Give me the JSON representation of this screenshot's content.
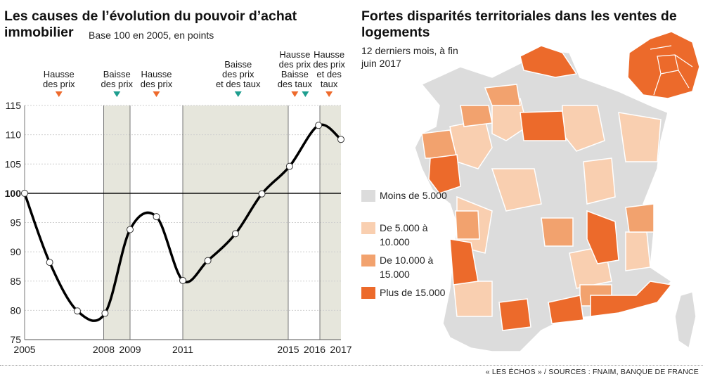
{
  "chart_data": {
    "type": "line",
    "title": "Les causes de l’évolution du pouvoir d’achat immobilier",
    "subtitle": "Base 100 en 2005, en points",
    "x_tick_labels": [
      "2005",
      "2008",
      "2009",
      "2011",
      "2015",
      "2016",
      "2017"
    ],
    "y_ticks": [
      75,
      80,
      85,
      90,
      95,
      100,
      105,
      110,
      115
    ],
    "y_tick_labels": [
      "75",
      "80",
      "85",
      "90",
      "95",
      "100",
      "105",
      "110",
      "115"
    ],
    "ylim": [
      75,
      115
    ],
    "xlim": [
      2005,
      2017
    ],
    "reference_line": 100,
    "points": [
      {
        "x": 2005.0,
        "y": 100
      },
      {
        "x": 2005.95,
        "y": 88.2
      },
      {
        "x": 2007.0,
        "y": 79.9
      },
      {
        "x": 2008.05,
        "y": 79.5
      },
      {
        "x": 2009.0,
        "y": 93.8
      },
      {
        "x": 2010.0,
        "y": 96.0
      },
      {
        "x": 2011.0,
        "y": 85.1
      },
      {
        "x": 2011.95,
        "y": 88.5
      },
      {
        "x": 2013.0,
        "y": 93.1
      },
      {
        "x": 2014.0,
        "y": 99.9
      },
      {
        "x": 2015.05,
        "y": 104.6
      },
      {
        "x": 2016.15,
        "y": 111.6
      },
      {
        "x": 2017.0,
        "y": 109.2
      }
    ],
    "shaded_periods": [
      [
        2008,
        2009
      ],
      [
        2011,
        2015
      ],
      [
        2016.2,
        2017.2
      ]
    ],
    "annotations": [
      {
        "lines": [
          "Hausse",
          "des prix"
        ],
        "x": 2006.3,
        "marker": "down",
        "color": "#ee6a2c"
      },
      {
        "lines": [
          "Baisse",
          "des prix"
        ],
        "x": 2008.5,
        "marker": "down",
        "color": "#1e9e8f"
      },
      {
        "lines": [
          "Hausse",
          "des prix"
        ],
        "x": 2010.0,
        "marker": "down",
        "color": "#ee6a2c"
      },
      {
        "lines": [
          "Baisse",
          "des prix",
          "et des taux"
        ],
        "x": 2013.1,
        "marker": "down",
        "color": "#1e9e8f"
      },
      {
        "lines": [
          "Hausse",
          "des prix",
          "Baisse",
          "des taux"
        ],
        "x": 2015.25,
        "marker": "down",
        "color": "#ee6a2c"
      },
      {
        "lines": [],
        "x": 2015.65,
        "marker": "down",
        "color": "#1e9e8f"
      },
      {
        "lines": [
          "Hausse",
          "des prix",
          "et des",
          "taux"
        ],
        "x": 2016.55,
        "marker": "down",
        "color": "#ee6a2c"
      }
    ]
  },
  "map": {
    "title": "Fortes disparités territoriales dans les ventes de logements",
    "subtitle": "12 derniers mois, à fin juin 2017",
    "legend": [
      {
        "label": "Moins de 5.000",
        "color": "#dcdcdc"
      },
      {
        "label": "De 5.000 à 10.000",
        "color": "#f9cfb0"
      },
      {
        "label": "De 10.000 à 15.000",
        "color": "#f2a26e"
      },
      {
        "label": "Plus de 15.000",
        "color": "#ec6a2b"
      }
    ]
  },
  "footer": "« LES ÉCHOS » / SOURCES : FNAIM, BANQUE DE FRANCE",
  "colors": {
    "shade": "#e6e6dc",
    "grid": "#cfcfcf",
    "line": "#000000"
  }
}
